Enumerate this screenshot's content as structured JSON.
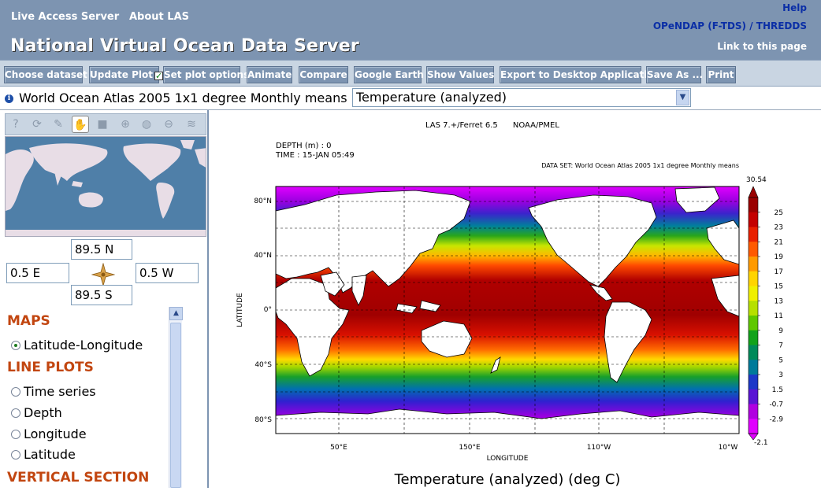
{
  "header": {
    "nav": [
      "Live Access Server",
      "About LAS"
    ],
    "title": "National Virtual Ocean Data Server",
    "help": "Help",
    "opendap": "OPeNDAP (F-TDS) / THREDDS",
    "permalink": "Link to this page",
    "bg_color": "#7d94b1"
  },
  "toolbar": {
    "buttons": [
      "Choose dataset",
      "Update Plot",
      "Set plot options",
      "Animate",
      "Compare",
      "Google Earth",
      "Show Values",
      "Export to Desktop Application",
      "Save As ...",
      "Print"
    ],
    "update_plot_checked": true
  },
  "dataset": {
    "name": "World Ocean Atlas 2005 1x1 degree Monthly means",
    "variable": "Temperature (analyzed)",
    "info_icon": "info-icon"
  },
  "map_tools": [
    "help-icon",
    "reset-icon",
    "pan-icon",
    "grab-icon",
    "select-box-icon",
    "zoom-in-icon",
    "zoom-world-icon",
    "zoom-out-icon",
    "layers-icon"
  ],
  "coords": {
    "north": "89.5 N",
    "south": "89.5 S",
    "west_field": "0.5 E",
    "east_field": "0.5 W"
  },
  "plot_types": {
    "maps_title": "MAPS",
    "maps": [
      "Latitude-Longitude"
    ],
    "line_title": "LINE PLOTS",
    "line": [
      "Time series",
      "Depth",
      "Longitude",
      "Latitude"
    ],
    "vertical_title": "VERTICAL SECTION"
  },
  "plot": {
    "header": "LAS 7.+/Ferret 6.5      NOAA/PMEL",
    "depth": "DEPTH (m) : 0",
    "time": "TIME : 15-JAN 05:49",
    "dataset_line": "DATA SET: World Ocean Atlas 2005 1x1 degree Monthly means",
    "xlabel": "LONGITUDE",
    "ylabel": "LATITUDE",
    "caption": "Temperature (analyzed) (deg C)",
    "lat_ticks": [
      "80°N",
      "40°N",
      "0°",
      "40°S",
      "80°S"
    ],
    "lon_ticks": [
      "50°E",
      "150°E",
      "110°W",
      "10°W"
    ],
    "colorbar_max": "30.54",
    "colorbar_min": "-2.1",
    "colorbar_ticks": [
      "25",
      "23",
      "21",
      "19",
      "17",
      "15",
      "13",
      "11",
      "9",
      "7",
      "5",
      "3",
      "1.5",
      "-0.7",
      "-2.9"
    ],
    "palette": [
      "#9a0000",
      "#c40000",
      "#e82000",
      "#ff5a00",
      "#ff9a00",
      "#ffd400",
      "#f0f000",
      "#b6e000",
      "#5fc800",
      "#12a21a",
      "#008a5a",
      "#007a9a",
      "#1c38c8",
      "#5a14d4",
      "#b000e0",
      "#e000ff"
    ]
  }
}
